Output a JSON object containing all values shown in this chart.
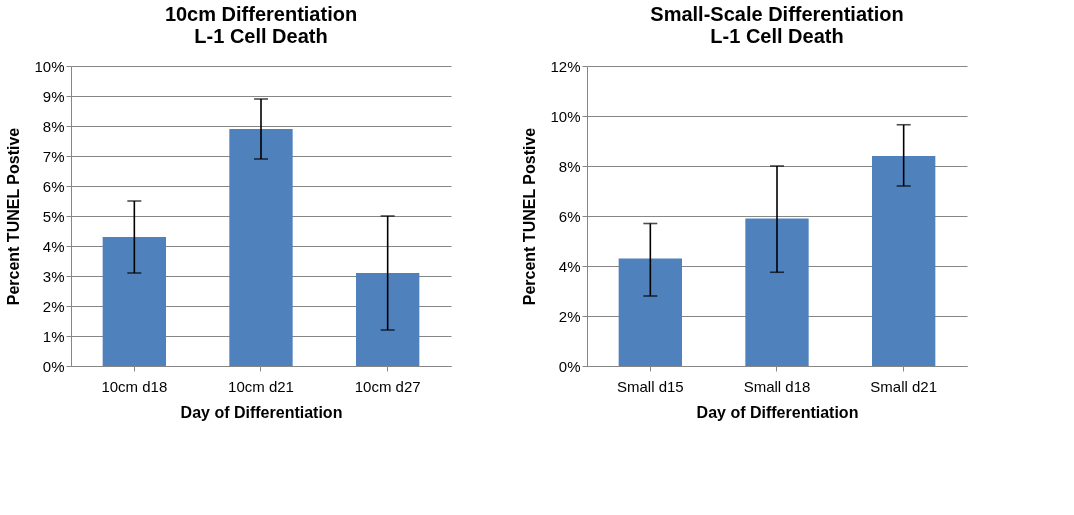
{
  "chart_data": [
    {
      "type": "bar",
      "title": "10cm Differentiation\nL-1 Cell Death",
      "xlabel": "Day of Differentiation",
      "ylabel": "Percent TUNEL Postive",
      "categories": [
        "10cm d18",
        "10cm d21",
        "10cm d27"
      ],
      "values": [
        4.3,
        7.9,
        3.1
      ],
      "errors": [
        [
          3.1,
          5.5
        ],
        [
          6.9,
          8.9
        ],
        [
          1.2,
          5.0
        ]
      ],
      "color": "#4f81bd",
      "ylim": [
        0,
        10
      ],
      "yticks": [
        {
          "value": 0,
          "label": "0%"
        },
        {
          "value": 1,
          "label": "1%"
        },
        {
          "value": 2,
          "label": "2%"
        },
        {
          "value": 3,
          "label": "3%"
        },
        {
          "value": 4,
          "label": "4%"
        },
        {
          "value": 5,
          "label": "5%"
        },
        {
          "value": 6,
          "label": "6%"
        },
        {
          "value": 7,
          "label": "7%"
        },
        {
          "value": 8,
          "label": "8%"
        },
        {
          "value": 9,
          "label": "9%"
        },
        {
          "value": 10,
          "label": "10%"
        }
      ],
      "grid": "y"
    },
    {
      "type": "bar",
      "title": "Small-Scale Differentiation\nL-1 Cell Death",
      "xlabel": "Day of Differentiation",
      "ylabel": "Percent TUNEL Postive",
      "categories": [
        "Small d15",
        "Small d18",
        "Small d21"
      ],
      "values": [
        4.3,
        5.9,
        8.4
      ],
      "errors": [
        [
          2.8,
          5.7
        ],
        [
          3.75,
          8.0
        ],
        [
          7.2,
          9.65
        ]
      ],
      "color": "#4f81bd",
      "ylim": [
        0,
        12
      ],
      "yticks": [
        {
          "value": 0,
          "label": "0%"
        },
        {
          "value": 2,
          "label": "2%"
        },
        {
          "value": 4,
          "label": "4%"
        },
        {
          "value": 6,
          "label": "6%"
        },
        {
          "value": 8,
          "label": "8%"
        },
        {
          "value": 10,
          "label": "10%"
        },
        {
          "value": 12,
          "label": "12%"
        }
      ],
      "grid": "y"
    }
  ]
}
